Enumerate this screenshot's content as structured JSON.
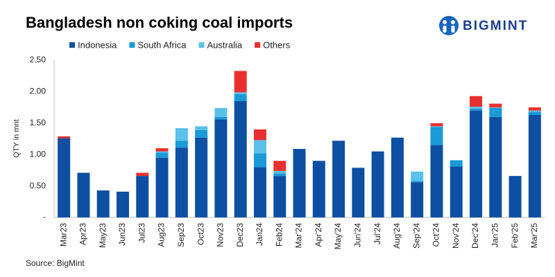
{
  "chart_data": {
    "type": "stacked-bar",
    "title": "Bangladesh non coking coal imports",
    "brand": "BIGMINT",
    "y_label": "QTY in mnt",
    "source": "Source: BigMint",
    "categories": [
      "Mar23",
      "Apr23",
      "May23",
      "Jun23",
      "Jul23",
      "Aug23",
      "Sep23",
      "Oct23",
      "Nov23",
      "Dec23",
      "Jan24",
      "Feb24",
      "Mar'24",
      "Apr'24",
      "May'24",
      "Jun'24",
      "Jul'24",
      "Aug'24",
      "Sep'24",
      "Oct'24",
      "Nov'24",
      "Dec'24",
      "Jan'25",
      "Feb'25",
      "Mar'25"
    ],
    "series": [
      {
        "name": "Indonesia",
        "color": "#0d4fa3",
        "values": [
          1.26,
          0.71,
          0.43,
          0.41,
          0.66,
          0.95,
          1.11,
          1.27,
          1.56,
          1.85,
          0.8,
          0.66,
          1.09,
          0.9,
          1.22,
          0.79,
          1.05,
          1.27,
          0.56,
          1.15,
          0.81,
          1.7,
          1.6,
          0.66,
          1.63
        ]
      },
      {
        "name": "South Africa",
        "color": "#1a9ad6",
        "values": [
          0,
          0,
          0,
          0,
          0,
          0.08,
          0.11,
          0.12,
          0.04,
          0.11,
          0.22,
          0.04,
          0,
          0,
          0,
          0,
          0,
          0,
          0.02,
          0.29,
          0.1,
          0.03,
          0.14,
          0,
          0.05
        ]
      },
      {
        "name": "Australia",
        "color": "#5bc0ea",
        "values": [
          0,
          0,
          0,
          0,
          0,
          0.02,
          0.2,
          0.06,
          0.14,
          0.03,
          0.21,
          0.04,
          0,
          0,
          0,
          0,
          0,
          0,
          0.15,
          0.01,
          0,
          0.03,
          0.01,
          0,
          0.02
        ]
      },
      {
        "name": "Others",
        "color": "#e8312f",
        "values": [
          0.03,
          0,
          0,
          0,
          0.05,
          0.05,
          0,
          0,
          0,
          0.34,
          0.17,
          0.16,
          0,
          0,
          0,
          0,
          0,
          0,
          0,
          0.05,
          0,
          0.17,
          0.06,
          0,
          0.05
        ]
      }
    ],
    "ylim": [
      0,
      2.5
    ],
    "yticks": [
      {
        "value": 0,
        "label": "-"
      },
      {
        "value": 0.5,
        "label": "0.50"
      },
      {
        "value": 1,
        "label": "1.00"
      },
      {
        "value": 1.5,
        "label": "1.50"
      },
      {
        "value": 2,
        "label": "2.00"
      },
      {
        "value": 2.5,
        "label": "2.50"
      }
    ],
    "grid": false,
    "legend": "top"
  }
}
